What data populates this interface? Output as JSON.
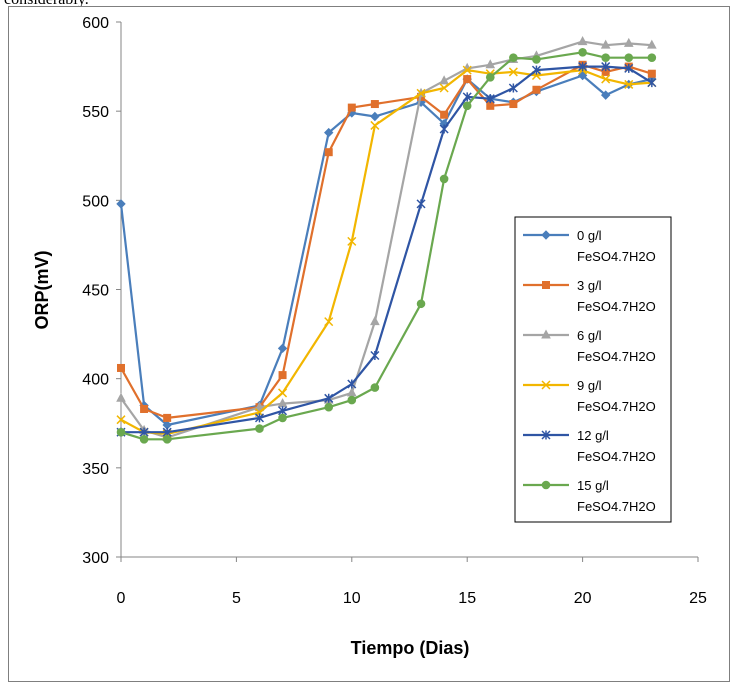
{
  "top_text": "considerably.",
  "chart_data": {
    "type": "line",
    "title": "",
    "xlabel": "Tiempo (Dias)",
    "ylabel": "ORP(mV)",
    "xlim": [
      0,
      25
    ],
    "ylim": [
      300,
      600
    ],
    "xticks": [
      0,
      5,
      10,
      15,
      20,
      25
    ],
    "yticks": [
      300,
      350,
      400,
      450,
      500,
      550,
      600
    ],
    "grid": false,
    "legend_position": "right",
    "series": [
      {
        "name": "0 g/l FeSO4.7H2O",
        "name_lines": [
          "0 g/l",
          "FeSO4.7H2O"
        ],
        "color": "#4a7ebb",
        "marker": "diamond",
        "x": [
          0,
          1,
          2,
          6,
          7,
          9,
          10,
          11,
          13,
          14,
          15,
          16,
          17,
          18,
          20,
          21,
          22,
          23
        ],
        "y": [
          498,
          385,
          374,
          385,
          417,
          538,
          549,
          547,
          555,
          543,
          568,
          557,
          555,
          561,
          570,
          559,
          565,
          568
        ]
      },
      {
        "name": "3 g/l FeSO4.7H2O",
        "name_lines": [
          "3 g/l",
          "FeSO4.7H2O"
        ],
        "color": "#e0702c",
        "marker": "square",
        "x": [
          0,
          1,
          2,
          6,
          7,
          9,
          10,
          11,
          13,
          14,
          15,
          16,
          17,
          18,
          20,
          21,
          22,
          23
        ],
        "y": [
          406,
          383,
          378,
          384,
          402,
          527,
          552,
          554,
          558,
          548,
          568,
          553,
          554,
          562,
          576,
          572,
          575,
          571
        ]
      },
      {
        "name": "6 g/l FeSO4.7H2O",
        "name_lines": [
          "6 g/l",
          "FeSO4.7H2O"
        ],
        "color": "#a5a5a5",
        "marker": "triangle",
        "x": [
          0,
          1,
          2,
          6,
          7,
          9,
          10,
          11,
          13,
          14,
          15,
          16,
          17,
          18,
          20,
          21,
          22,
          23
        ],
        "y": [
          389,
          371,
          367,
          384,
          386,
          388,
          392,
          432,
          560,
          567,
          574,
          576,
          579,
          581,
          589,
          587,
          588,
          587
        ]
      },
      {
        "name": "9 g/l FeSO4.7H2O",
        "name_lines": [
          "9 g/l",
          "FeSO4.7H2O"
        ],
        "color": "#f2b600",
        "marker": "x",
        "x": [
          0,
          1,
          2,
          6,
          7,
          9,
          10,
          11,
          13,
          14,
          15,
          16,
          17,
          18,
          20,
          21,
          22,
          23
        ],
        "y": [
          377,
          370,
          369,
          381,
          392,
          432,
          477,
          542,
          560,
          563,
          573,
          571,
          572,
          570,
          573,
          568,
          565,
          566
        ]
      },
      {
        "name": "12 g/l FeSO4.7H2O",
        "name_lines": [
          "12 g/l",
          "FeSO4.7H2O"
        ],
        "color": "#2f55a4",
        "marker": "star",
        "x": [
          0,
          1,
          2,
          6,
          7,
          9,
          10,
          11,
          13,
          14,
          15,
          16,
          17,
          18,
          20,
          21,
          22,
          23
        ],
        "y": [
          370,
          370,
          370,
          378,
          382,
          389,
          397,
          413,
          498,
          540,
          558,
          557,
          563,
          573,
          575,
          575,
          574,
          566
        ]
      },
      {
        "name": "15 g/l FeSO4.7H2O",
        "name_lines": [
          "15 g/l",
          "FeSO4.7H2O"
        ],
        "color": "#6aa84f",
        "marker": "circle",
        "x": [
          0,
          1,
          2,
          6,
          7,
          9,
          10,
          11,
          13,
          14,
          15,
          16,
          17,
          18,
          20,
          21,
          22,
          23
        ],
        "y": [
          370,
          366,
          366,
          372,
          378,
          384,
          388,
          395,
          442,
          512,
          553,
          569,
          580,
          579,
          583,
          580,
          580,
          580
        ]
      }
    ]
  }
}
